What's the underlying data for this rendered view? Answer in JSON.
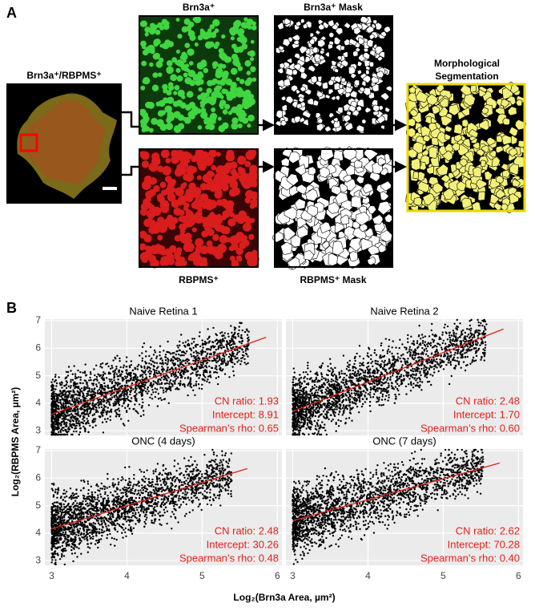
{
  "panel_a": {
    "label": "A",
    "retina_title": "Brn3a⁺/RBPMS⁺",
    "brn3a_title": "Brn3a⁺",
    "brn3a_mask_title": "Brn3a⁺ Mask",
    "rbpms_title": "RBPMS⁺",
    "rbpms_mask_title": "RBPMS⁺ Mask",
    "segmentation_title": [
      "Morphological",
      "Segmentation"
    ]
  },
  "chart_data": {
    "type": "scatter",
    "label": "B",
    "x_label": "Log₂(Brn3a Area, µm²)",
    "y_label": "Log₂(RBPMS Area, µm²)",
    "xlim": [
      2.91,
      6.06
    ],
    "xticks": [
      3,
      4,
      5,
      6
    ],
    "ylim": [
      2.83,
      7.06
    ],
    "yticks": [
      3,
      4,
      5,
      6,
      7
    ],
    "grid": true,
    "fit_color": "#e0201b",
    "point_color": "#000000",
    "panels": [
      {
        "title": "Naive Retina 1",
        "stats": [
          "CN ratio: 1.93",
          "Intercept: 8.91",
          "Spearman’s rho: 0.65"
        ],
        "fit": {
          "x": [
            3,
            5.85
          ],
          "y": [
            3.6,
            6.4
          ]
        }
      },
      {
        "title": "Naive Retina 2",
        "stats": [
          "CN ratio: 2.48",
          "Intercept: 1.70",
          "Spearman’s rho: 0.60"
        ],
        "fit": {
          "x": [
            3,
            5.8
          ],
          "y": [
            3.7,
            6.7
          ]
        }
      },
      {
        "title": "ONC (4 days)",
        "stats": [
          "CN ratio: 2.48",
          "Intercept: 30.26",
          "Spearman’s rho: 0.48"
        ],
        "fit": {
          "x": [
            3,
            5.6
          ],
          "y": [
            4.15,
            6.35
          ]
        }
      },
      {
        "title": "ONC (7 days)",
        "stats": [
          "CN ratio: 2.62",
          "Intercept: 70.28",
          "Spearman’s rho: 0.40"
        ],
        "fit": {
          "x": [
            3,
            5.75
          ],
          "y": [
            4.45,
            6.55
          ]
        }
      }
    ]
  }
}
